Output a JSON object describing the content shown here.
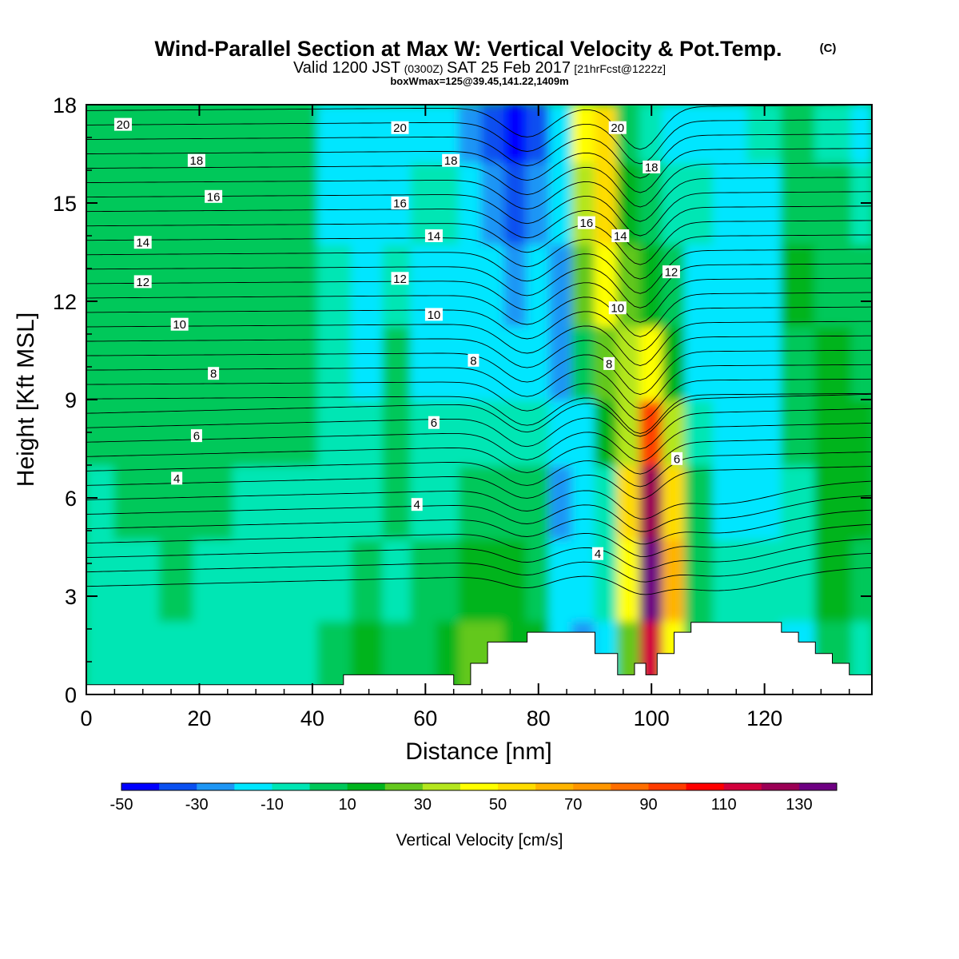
{
  "title": {
    "main": "Wind-Parallel Section at Max W: Vertical Velocity & Pot.Temp.",
    "copyright": "(C)",
    "valid_prefix": "Valid 1200 JST",
    "valid_utc": "(0300Z)",
    "valid_date": "SAT 25 Feb 2017",
    "forecast": "[21hrFcst@1222z]",
    "box": "boxWmax=125@39.45,141.22,1409m"
  },
  "chart_data": {
    "type": "heatmap",
    "xlabel": "Distance [nm]",
    "ylabel": "Height [Kft MSL]",
    "xlim": [
      0,
      139
    ],
    "ylim": [
      0,
      18
    ],
    "x_ticks": [
      0,
      20,
      40,
      60,
      80,
      100,
      120
    ],
    "y_ticks": [
      0,
      3,
      6,
      9,
      12,
      15,
      18
    ],
    "colorbar": {
      "label": "Vertical Velocity [cm/s]",
      "levels": [
        -50,
        -40,
        -30,
        -20,
        -10,
        0,
        10,
        20,
        30,
        40,
        50,
        60,
        70,
        80,
        90,
        100,
        110,
        120,
        130,
        140
      ],
      "tick_labels": [
        "-50",
        "-30",
        "-10",
        "10",
        "30",
        "50",
        "70",
        "90",
        "110",
        "130"
      ],
      "colors": [
        "#0000ff",
        "#0a50f0",
        "#1e96f5",
        "#00e6ff",
        "#00e6b4",
        "#00c85a",
        "#00b41e",
        "#64c81e",
        "#b4e61e",
        "#ffff00",
        "#ffdc00",
        "#ffb400",
        "#ff9600",
        "#ff6e00",
        "#ff3c00",
        "#ff0000",
        "#d2003c",
        "#9b0055",
        "#6e0082"
      ]
    },
    "vertical_velocity_columns": [
      {
        "x": 0,
        "w": [
          -5,
          -5,
          -5,
          2,
          2,
          2,
          2,
          2
        ]
      },
      {
        "x": 10,
        "w": [
          -5,
          -5,
          2,
          2,
          2,
          2,
          2,
          2
        ]
      },
      {
        "x": 16,
        "w": [
          -5,
          2,
          2,
          2,
          2,
          2,
          2,
          2
        ]
      },
      {
        "x": 22,
        "w": [
          -5,
          -5,
          2,
          2,
          2,
          2,
          2,
          2
        ]
      },
      {
        "x": 30,
        "w": [
          -5,
          -5,
          -5,
          2,
          2,
          2,
          2,
          2
        ]
      },
      {
        "x": 38,
        "w": [
          -5,
          -5,
          -5,
          0,
          2,
          2,
          2,
          2
        ]
      },
      {
        "x": 44,
        "w": [
          2,
          -5,
          -5,
          -5,
          -5,
          -5,
          -12,
          -12
        ]
      },
      {
        "x": 50,
        "w": [
          12,
          2,
          -5,
          -5,
          -12,
          -12,
          -12,
          -18
        ]
      },
      {
        "x": 55,
        "w": [
          2,
          -5,
          2,
          5,
          5,
          -5,
          -12,
          -12
        ]
      },
      {
        "x": 60,
        "w": [
          2,
          2,
          -5,
          -5,
          -12,
          -12,
          -5,
          -12
        ]
      },
      {
        "x": 64,
        "w": [
          12,
          2,
          -5,
          -5,
          -12,
          -12,
          -5,
          -12
        ]
      },
      {
        "x": 68,
        "w": [
          28,
          15,
          2,
          -5,
          -12,
          -12,
          -12,
          -25
        ]
      },
      {
        "x": 72,
        "w": [
          22,
          18,
          5,
          -5,
          -12,
          -18,
          -25,
          -35
        ]
      },
      {
        "x": 76,
        "w": [
          18,
          14,
          5,
          -5,
          -18,
          -25,
          -35,
          -48
        ]
      },
      {
        "x": 80,
        "w": [
          10,
          8,
          5,
          -5,
          -12,
          -18,
          -28,
          -35
        ]
      },
      {
        "x": 84,
        "w": [
          -12,
          -12,
          -25,
          -18,
          -25,
          -25,
          -12,
          -12
        ]
      },
      {
        "x": 88,
        "w": [
          -25,
          -18,
          -12,
          -12,
          5,
          22,
          35,
          42
        ]
      },
      {
        "x": 92,
        "w": [
          -12,
          -5,
          -5,
          12,
          28,
          45,
          52,
          55
        ]
      },
      {
        "x": 96,
        "w": [
          28,
          45,
          55,
          35,
          32,
          22,
          12,
          5
        ]
      },
      {
        "x": 100,
        "w": [
          112,
          132,
          125,
          90,
          42,
          12,
          2,
          -5
        ]
      },
      {
        "x": 104,
        "w": [
          45,
          62,
          55,
          32,
          18,
          2,
          -5,
          -12
        ]
      },
      {
        "x": 108,
        "w": [
          8,
          8,
          2,
          -5,
          -12,
          -12,
          -5,
          -12
        ]
      },
      {
        "x": 114,
        "w": [
          -5,
          -5,
          -12,
          -18,
          -12,
          -12,
          -12,
          -12
        ]
      },
      {
        "x": 120,
        "w": [
          -5,
          -5,
          -12,
          -12,
          -12,
          -12,
          -12,
          -5
        ]
      },
      {
        "x": 126,
        "w": [
          -12,
          -5,
          -5,
          2,
          5,
          12,
          5,
          2
        ]
      },
      {
        "x": 132,
        "w": [
          8,
          12,
          18,
          12,
          12,
          5,
          2,
          -5
        ]
      },
      {
        "x": 139,
        "w": [
          -5,
          8,
          12,
          18,
          5,
          2,
          -5,
          -12
        ]
      }
    ],
    "vertical_velocity_heights": [
      1,
      3.5,
      6,
      8,
      10,
      12.5,
      15,
      17.5
    ],
    "terrain": [
      [
        0,
        0.3
      ],
      [
        45.5,
        0.3
      ],
      [
        45.5,
        0.6
      ],
      [
        65,
        0.6
      ],
      [
        65,
        0.3
      ],
      [
        68,
        0.3
      ],
      [
        68,
        0.95
      ],
      [
        71,
        0.95
      ],
      [
        71,
        1.6
      ],
      [
        78,
        1.6
      ],
      [
        78,
        1.9
      ],
      [
        90,
        1.9
      ],
      [
        90,
        1.25
      ],
      [
        94,
        1.25
      ],
      [
        94,
        0.6
      ],
      [
        97,
        0.6
      ],
      [
        97,
        0.95
      ],
      [
        99,
        0.95
      ],
      [
        99,
        0.6
      ],
      [
        101,
        0.6
      ],
      [
        101,
        1.25
      ],
      [
        104,
        1.25
      ],
      [
        104,
        1.9
      ],
      [
        107,
        1.9
      ],
      [
        107,
        2.2
      ],
      [
        123,
        2.2
      ],
      [
        123,
        1.9
      ],
      [
        126,
        1.9
      ],
      [
        126,
        1.6
      ],
      [
        129,
        1.6
      ],
      [
        129,
        1.25
      ],
      [
        132,
        1.25
      ],
      [
        132,
        0.95
      ],
      [
        135,
        0.95
      ],
      [
        135,
        0.6
      ],
      [
        139,
        0.6
      ]
    ],
    "potential_temperature_labels": [
      {
        "text": "20",
        "x": 6.5,
        "y": 17.4
      },
      {
        "text": "18",
        "x": 19.5,
        "y": 16.3
      },
      {
        "text": "16",
        "x": 22.5,
        "y": 15.2
      },
      {
        "text": "14",
        "x": 10,
        "y": 13.8
      },
      {
        "text": "12",
        "x": 10,
        "y": 12.6
      },
      {
        "text": "10",
        "x": 16.5,
        "y": 11.3
      },
      {
        "text": "8",
        "x": 22.5,
        "y": 9.8
      },
      {
        "text": "6",
        "x": 19.5,
        "y": 7.9
      },
      {
        "text": "4",
        "x": 16,
        "y": 6.6
      },
      {
        "text": "20",
        "x": 55.5,
        "y": 17.3
      },
      {
        "text": "18",
        "x": 64.5,
        "y": 16.3
      },
      {
        "text": "16",
        "x": 55.5,
        "y": 15.0
      },
      {
        "text": "14",
        "x": 61.5,
        "y": 14.0
      },
      {
        "text": "12",
        "x": 55.5,
        "y": 12.7
      },
      {
        "text": "10",
        "x": 61.5,
        "y": 11.6
      },
      {
        "text": "8",
        "x": 68.5,
        "y": 10.2
      },
      {
        "text": "6",
        "x": 61.5,
        "y": 8.3
      },
      {
        "text": "4",
        "x": 58.5,
        "y": 5.8
      },
      {
        "text": "20",
        "x": 94,
        "y": 17.3
      },
      {
        "text": "18",
        "x": 100,
        "y": 16.1
      },
      {
        "text": "16",
        "x": 88.5,
        "y": 14.4
      },
      {
        "text": "14",
        "x": 94.5,
        "y": 14.0
      },
      {
        "text": "12",
        "x": 103.5,
        "y": 12.9
      },
      {
        "text": "10",
        "x": 94,
        "y": 11.8
      },
      {
        "text": "8",
        "x": 92.5,
        "y": 10.1
      },
      {
        "text": "6",
        "x": 104.5,
        "y": 7.2
      },
      {
        "text": "4",
        "x": 90.5,
        "y": 4.3
      }
    ]
  }
}
